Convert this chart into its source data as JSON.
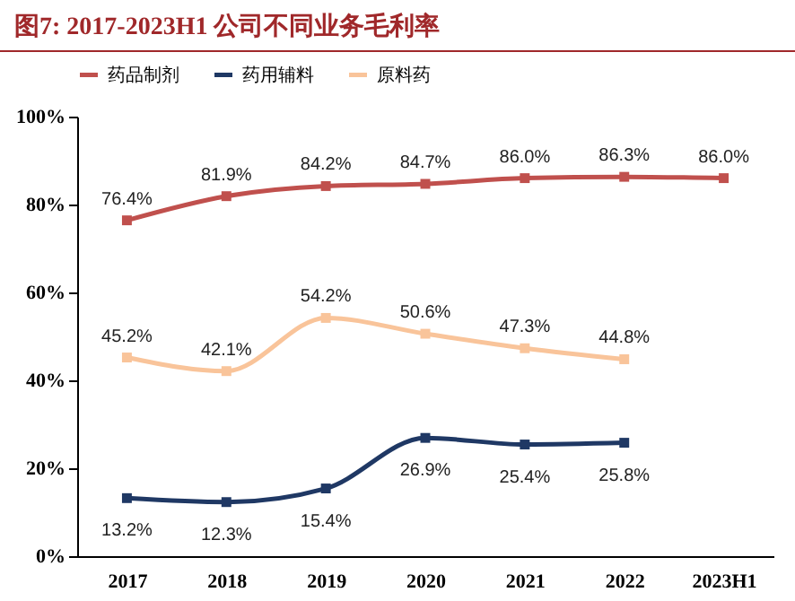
{
  "chart_data": {
    "type": "line",
    "title": "图7:  2017-2023H1 公司不同业务毛利率",
    "categories": [
      "2017",
      "2018",
      "2019",
      "2020",
      "2021",
      "2022",
      "2023H1"
    ],
    "series": [
      {
        "name": "药品制剂",
        "color": "#c0504d",
        "values": [
          76.4,
          81.9,
          84.2,
          84.7,
          86.0,
          86.3,
          86.0
        ],
        "value_labels": [
          "76.4%",
          "81.9%",
          "84.2%",
          "84.7%",
          "86.0%",
          "86.3%",
          "86.0%"
        ]
      },
      {
        "name": "药用辅料",
        "color": "#1f3864",
        "values": [
          13.2,
          12.3,
          15.4,
          26.9,
          25.4,
          25.8,
          null
        ],
        "value_labels": [
          "13.2%",
          "12.3%",
          "15.4%",
          "26.9%",
          "25.4%",
          "25.8%",
          null
        ]
      },
      {
        "name": "原料药",
        "color": "#f9c49a",
        "values": [
          45.2,
          42.1,
          54.2,
          50.6,
          47.3,
          44.8,
          null
        ],
        "value_labels": [
          "45.2%",
          "42.1%",
          "54.2%",
          "50.6%",
          "47.3%",
          "44.8%",
          null
        ]
      }
    ],
    "ylim": [
      0,
      100
    ],
    "yticks": [
      {
        "value": 0,
        "label": "0%"
      },
      {
        "value": 20,
        "label": "20%"
      },
      {
        "value": 40,
        "label": "40%"
      },
      {
        "value": 60,
        "label": "60%"
      },
      {
        "value": 80,
        "label": "80%"
      },
      {
        "value": 100,
        "label": "100%"
      }
    ],
    "grid": false,
    "legend": "top",
    "marker": "square",
    "line_style": "solid"
  }
}
